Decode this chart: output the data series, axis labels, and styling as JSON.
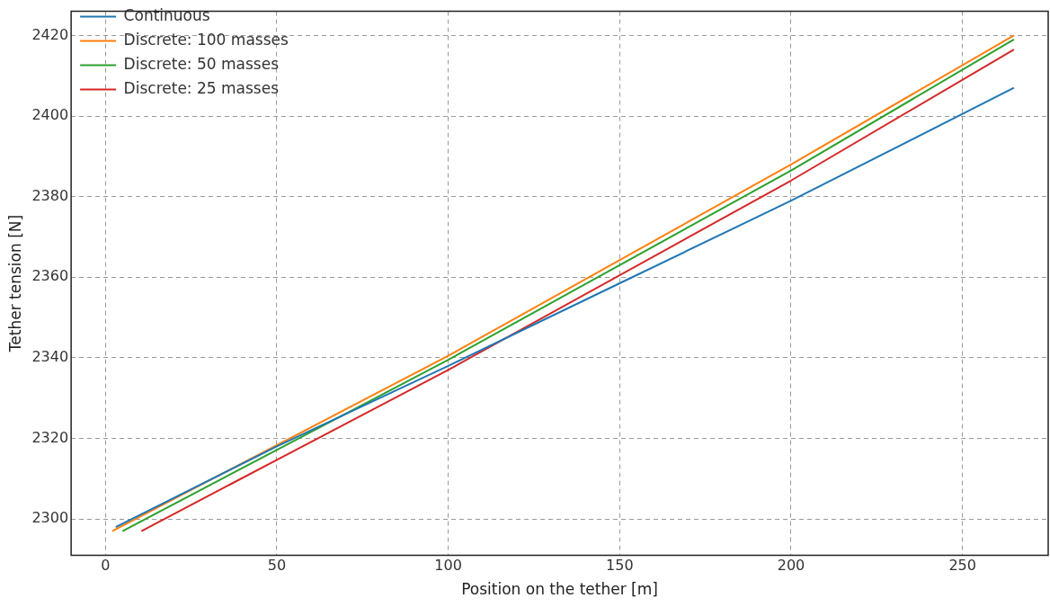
{
  "chart_data": {
    "type": "line",
    "xlabel": "Position on the tether [m]",
    "ylabel": "Tether tension [N]",
    "xlim": [
      -10,
      275
    ],
    "ylim": [
      2291,
      2426
    ],
    "xticks": [
      0,
      50,
      100,
      150,
      200,
      250
    ],
    "yticks": [
      2300,
      2320,
      2340,
      2360,
      2380,
      2400,
      2420
    ],
    "grid": true,
    "legend": "top left",
    "line_style": "solid",
    "marker": "none",
    "series": [
      {
        "name": "Continuous",
        "color": "#1f77b4",
        "x": [
          3,
          50,
          100,
          150,
          200,
          265
        ],
        "values": [
          2298,
          2318,
          2338,
          2358.5,
          2379,
          2407
        ]
      },
      {
        "name": "Discrete: 100 masses",
        "color": "#ff7f0e",
        "x": [
          2,
          100,
          200,
          265
        ],
        "values": [
          2297,
          2340.5,
          2388,
          2420
        ]
      },
      {
        "name": "Discrete: 50 masses",
        "color": "#2ca02c",
        "x": [
          5,
          100,
          200,
          265
        ],
        "values": [
          2297,
          2339.5,
          2386.5,
          2419
        ]
      },
      {
        "name": "Discrete: 25 masses",
        "color": "#d62728",
        "x": [
          10.5,
          100,
          200,
          265
        ],
        "values": [
          2297,
          2337,
          2384,
          2416.5
        ]
      }
    ]
  }
}
